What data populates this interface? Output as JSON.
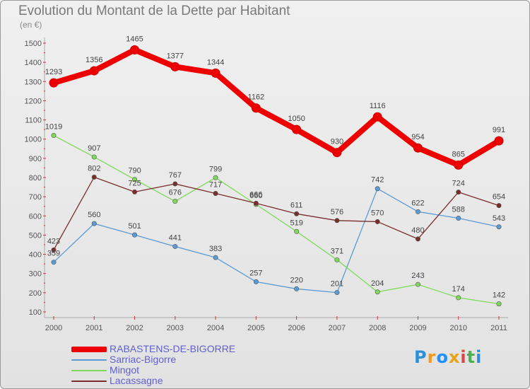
{
  "header": {
    "title": "Evolution du Montant de la Dette par Habitant",
    "unit": "(en €)"
  },
  "logo": {
    "text": "Proxiti"
  },
  "chart_data": {
    "type": "line",
    "title": "Evolution du Montant de la Dette par Habitant",
    "ylabel": "(en €)",
    "xlabel": "",
    "x": [
      "2000",
      "2001",
      "2002",
      "2003",
      "2004",
      "2005",
      "2006",
      "2007",
      "2008",
      "2009",
      "2010",
      "2011"
    ],
    "ylim": [
      100,
      1500
    ],
    "yticks": [
      100,
      200,
      300,
      400,
      500,
      600,
      700,
      800,
      900,
      1000,
      1100,
      1200,
      1300,
      1400,
      1500
    ],
    "grid": false,
    "legend_position": "bottom-left",
    "series": [
      {
        "name": "RABASTENS-DE-BIGORRE",
        "color": "#ee0000",
        "values": [
          1293,
          1356,
          1465,
          1377,
          1344,
          1162,
          1050,
          930,
          1116,
          954,
          865,
          991
        ]
      },
      {
        "name": "Sarriac-Bigorre",
        "color": "#5b9bd5",
        "values": [
          359,
          560,
          501,
          441,
          383,
          257,
          220,
          201,
          742,
          622,
          588,
          543
        ]
      },
      {
        "name": "Mingot",
        "color": "#7ed95a",
        "values": [
          1019,
          907,
          790,
          676,
          799,
          660,
          519,
          371,
          204,
          243,
          174,
          142
        ]
      },
      {
        "name": "Lacassagne",
        "color": "#7a2d2d",
        "values": [
          423,
          802,
          725,
          767,
          717,
          666,
          611,
          576,
          570,
          480,
          724,
          654
        ]
      }
    ]
  }
}
